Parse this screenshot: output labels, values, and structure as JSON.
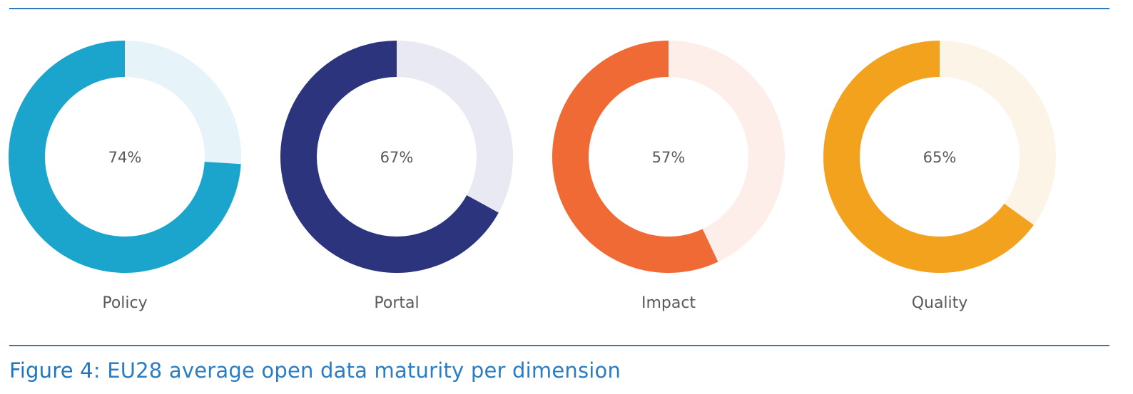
{
  "caption": {
    "label": "Figure 4",
    "separator": ": ",
    "text": "EU28 average open data maturity per dimension"
  },
  "chart_data": {
    "type": "pie",
    "variant": "donut",
    "title": "EU28 average open data maturity per dimension",
    "series": [
      {
        "name": "Policy",
        "value": 74,
        "value_label": "74%",
        "color": "#1ba5cd",
        "track_color": "#e6f4f9"
      },
      {
        "name": "Portal",
        "value": 67,
        "value_label": "67%",
        "color": "#2b347c",
        "track_color": "#e8e9f2"
      },
      {
        "name": "Impact",
        "value": 57,
        "value_label": "57%",
        "color": "#f06a35",
        "track_color": "#fdeee9"
      },
      {
        "name": "Quality",
        "value": 65,
        "value_label": "65%",
        "color": "#f3a21d",
        "track_color": "#fdf4e8"
      }
    ],
    "max": 100,
    "legend": "none"
  }
}
